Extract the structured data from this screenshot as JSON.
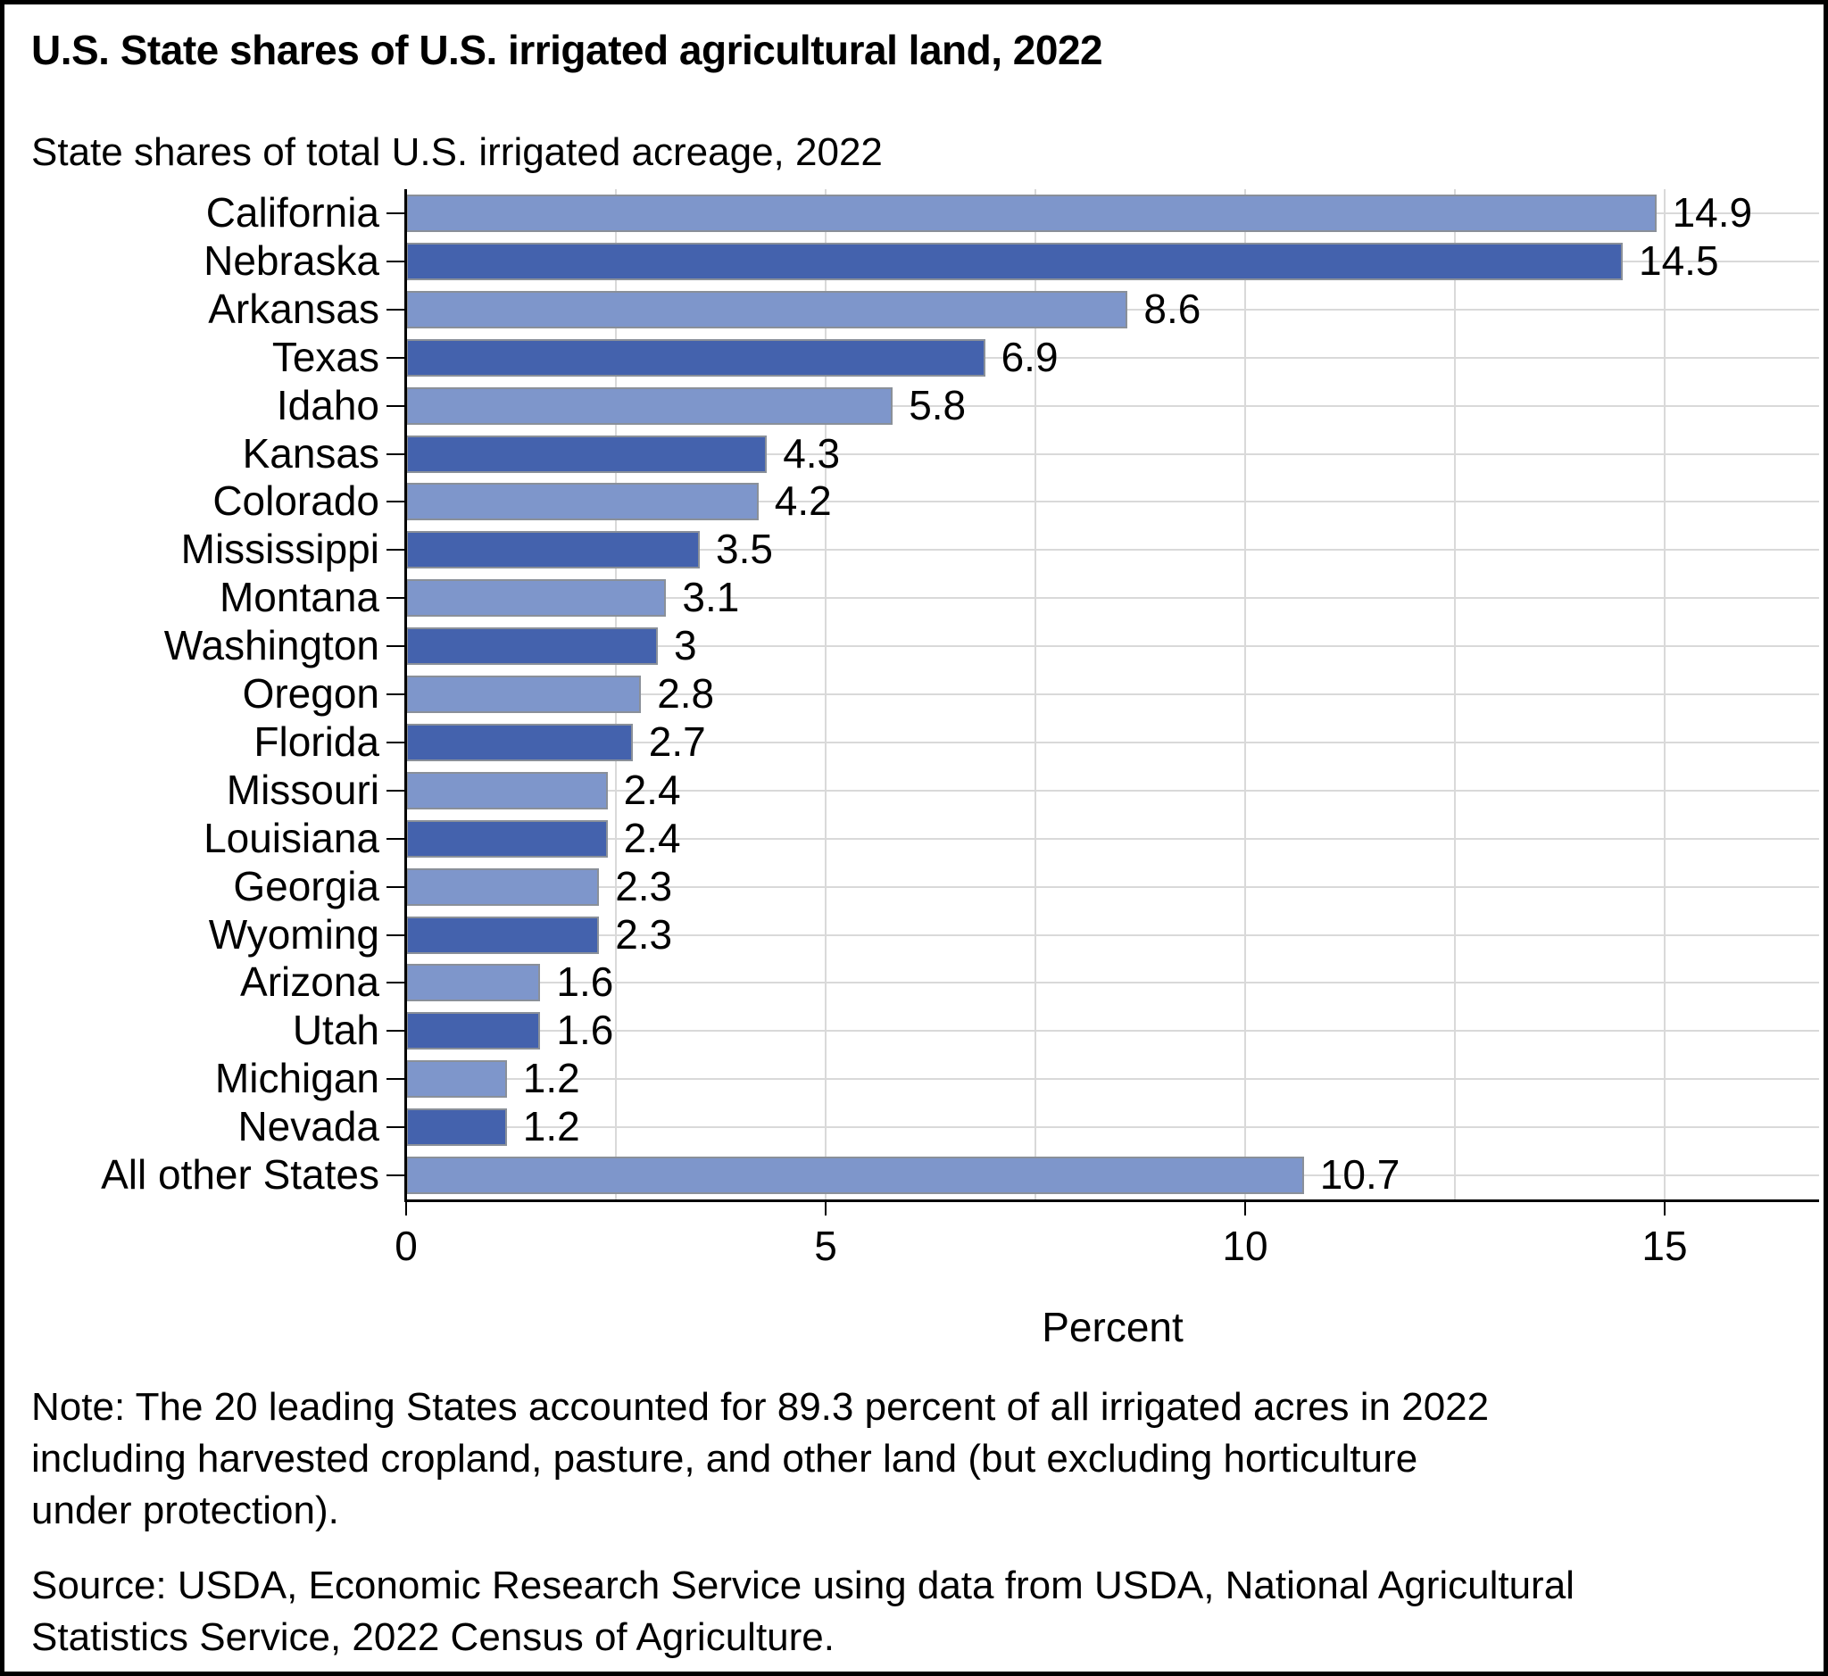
{
  "title": "U.S. State shares of U.S. irrigated agricultural land, 2022",
  "subtitle": "State shares of total U.S. irrigated acreage, 2022",
  "chart_data": {
    "type": "bar",
    "orientation": "horizontal",
    "title": "State shares of total U.S. irrigated acreage, 2022",
    "xlabel": "Percent",
    "ylabel": "",
    "xlim": [
      0,
      16.8
    ],
    "grid": true,
    "legend": "none",
    "categories": [
      "California",
      "Nebraska",
      "Arkansas",
      "Texas",
      "Idaho",
      "Kansas",
      "Colorado",
      "Mississippi",
      "Montana",
      "Washington",
      "Oregon",
      "Florida",
      "Missouri",
      "Louisiana",
      "Georgia",
      "Wyoming",
      "Arizona",
      "Utah",
      "Michigan",
      "Nevada",
      "All other States"
    ],
    "values": [
      14.9,
      14.5,
      8.6,
      6.9,
      5.8,
      4.3,
      4.2,
      3.5,
      3.1,
      3,
      2.8,
      2.7,
      2.4,
      2.4,
      2.3,
      2.3,
      1.6,
      1.6,
      1.2,
      1.2,
      10.7
    ],
    "value_labels": [
      "14.9",
      "14.5",
      "8.6",
      "6.9",
      "5.8",
      "4.3",
      "4.2",
      "3.5",
      "3.1",
      "3",
      "2.8",
      "2.7",
      "2.4",
      "2.4",
      "2.3",
      "2.3",
      "1.6",
      "1.6",
      "1.2",
      "1.2",
      "10.7"
    ],
    "bar_styles": [
      "light",
      "dark",
      "light",
      "dark",
      "light",
      "dark",
      "light",
      "dark",
      "light",
      "dark",
      "light",
      "dark",
      "light",
      "dark",
      "light",
      "dark",
      "light",
      "dark",
      "light",
      "dark",
      "light"
    ],
    "colors": {
      "light": "#7E96CB",
      "dark": "#4462AD",
      "bar_border": "#8a9099",
      "gridline": "#d9d9d9",
      "axis": "#000000"
    },
    "x_ticks": [
      0,
      5,
      10,
      15
    ],
    "x_tick_labels": [
      "0",
      "5",
      "10",
      "15"
    ],
    "gridlines_x": [
      2.5,
      5,
      7.5,
      10,
      12.5,
      15
    ]
  },
  "note_lines": [
    "Note: The 20 leading States accounted for 89.3 percent of all irrigated acres in 2022",
    "including harvested cropland, pasture, and other land (but excluding horticulture",
    "under protection)."
  ],
  "source_lines": [
    "Source: USDA, Economic Research Service using data from USDA, National Agricultural",
    "Statistics Service, 2022 Census of Agriculture."
  ]
}
